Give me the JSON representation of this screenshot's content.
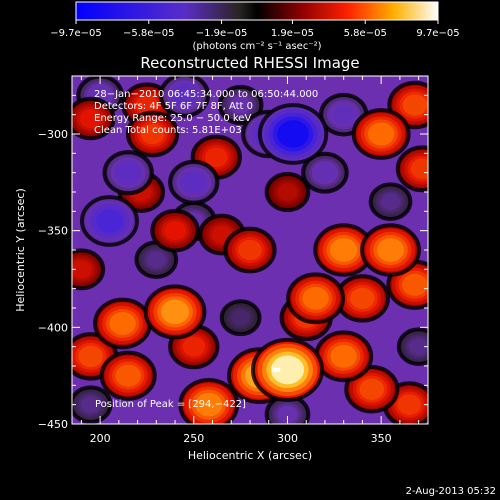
{
  "chart_data": {
    "type": "heatmap",
    "title": "Reconstructed RHESSI Image",
    "xlabel": "Heliocentric X (arcsec)",
    "ylabel": "Heliocentric Y (arcsec)",
    "xlim": [
      185,
      375
    ],
    "ylim": [
      -450,
      -270
    ],
    "x_ticks": [
      200,
      250,
      300,
      350
    ],
    "x_tick_labels": [
      "200",
      "250",
      "300",
      "350"
    ],
    "y_ticks": [
      -300,
      -350,
      -400,
      -450
    ],
    "y_tick_labels": [
      "−300",
      "−350",
      "−400",
      "−450"
    ],
    "colorbar": {
      "tick_labels": [
        "−9.7e−05",
        "−5.8e−05",
        "−1.9e−05",
        "1.9e−05",
        "5.8e−05",
        "9.7e−05"
      ],
      "ticks": [
        -9.7e-05,
        -5.8e-05,
        -1.9e-05,
        1.9e-05,
        5.8e-05,
        9.7e-05
      ],
      "range": [
        -9.7e-05,
        9.7e-05
      ],
      "units": "(photons cm⁻² s⁻¹ asec⁻²)"
    },
    "info_lines": [
      "28−Jan−2010 06:45:34.000 to 06:50:44.000",
      "Detectors: 4F 5F 6F 7F 8F, Att 0",
      "Energy Range: 25.0 − 50.0 keV",
      "Clean    Total counts: 5.81E+03"
    ],
    "peak_label": "Position of Peak = [294,−422]",
    "peak": [
      294,
      -422
    ],
    "blobs": [
      {
        "x": 300,
        "y": -422,
        "v": 9.7e-05
      },
      {
        "x": 285,
        "y": -425,
        "v": 7.5e-05
      },
      {
        "x": 258,
        "y": -440,
        "v": 6.5e-05
      },
      {
        "x": 240,
        "y": -392,
        "v": 7e-05
      },
      {
        "x": 212,
        "y": -398,
        "v": 6e-05
      },
      {
        "x": 195,
        "y": -415,
        "v": 5e-05
      },
      {
        "x": 215,
        "y": -425,
        "v": 5.5e-05
      },
      {
        "x": 250,
        "y": -410,
        "v": 4e-05
      },
      {
        "x": 330,
        "y": -415,
        "v": 6e-05
      },
      {
        "x": 345,
        "y": -432,
        "v": 5e-05
      },
      {
        "x": 365,
        "y": -440,
        "v": 4.5e-05
      },
      {
        "x": 330,
        "y": -360,
        "v": 6.5e-05
      },
      {
        "x": 355,
        "y": -360,
        "v": 6.5e-05
      },
      {
        "x": 368,
        "y": -378,
        "v": 5.5e-05
      },
      {
        "x": 340,
        "y": -385,
        "v": 5e-05
      },
      {
        "x": 315,
        "y": -385,
        "v": 6e-05
      },
      {
        "x": 310,
        "y": -395,
        "v": 4.5e-05
      },
      {
        "x": 280,
        "y": -360,
        "v": 4.5e-05
      },
      {
        "x": 350,
        "y": -300,
        "v": 6e-05
      },
      {
        "x": 368,
        "y": -285,
        "v": 5e-05
      },
      {
        "x": 372,
        "y": -318,
        "v": 4.5e-05
      },
      {
        "x": 262,
        "y": -312,
        "v": 4e-05
      },
      {
        "x": 225,
        "y": -285,
        "v": 4e-05
      },
      {
        "x": 228,
        "y": -300,
        "v": 4.5e-05
      },
      {
        "x": 195,
        "y": -292,
        "v": 3.5e-05
      },
      {
        "x": 222,
        "y": -330,
        "v": 3e-05
      },
      {
        "x": 240,
        "y": -350,
        "v": 3.5e-05
      },
      {
        "x": 265,
        "y": -352,
        "v": 3e-05
      },
      {
        "x": 190,
        "y": -370,
        "v": 3e-05
      },
      {
        "x": 300,
        "y": -330,
        "v": 2.5e-05
      },
      {
        "x": 303,
        "y": -300,
        "v": -9e-05
      },
      {
        "x": 290,
        "y": -300,
        "v": -5e-05
      },
      {
        "x": 205,
        "y": -345,
        "v": -6e-05
      },
      {
        "x": 215,
        "y": -320,
        "v": -4e-05
      },
      {
        "x": 250,
        "y": -325,
        "v": -4e-05
      },
      {
        "x": 245,
        "y": -280,
        "v": -4e-05
      },
      {
        "x": 330,
        "y": -290,
        "v": -3.5e-05
      },
      {
        "x": 320,
        "y": -320,
        "v": -3e-05
      },
      {
        "x": 200,
        "y": -280,
        "v": -3e-05
      },
      {
        "x": 275,
        "y": -285,
        "v": -2.5e-05
      },
      {
        "x": 250,
        "y": -345,
        "v": -2.5e-05
      },
      {
        "x": 230,
        "y": -365,
        "v": -2e-05
      },
      {
        "x": 355,
        "y": -335,
        "v": -2e-05
      },
      {
        "x": 370,
        "y": -410,
        "v": -2e-05
      },
      {
        "x": 300,
        "y": -445,
        "v": -2.5e-05
      },
      {
        "x": 195,
        "y": -440,
        "v": -2e-05
      },
      {
        "x": 275,
        "y": -395,
        "v": -1.5e-05
      }
    ]
  }
}
